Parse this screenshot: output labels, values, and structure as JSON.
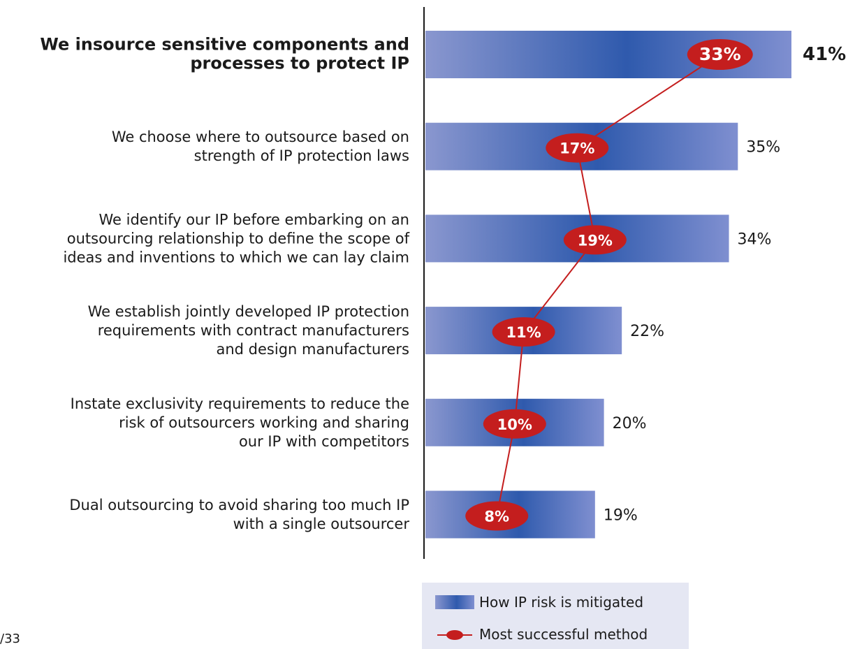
{
  "chart_data": {
    "type": "bar",
    "orientation": "horizontal",
    "categories": [
      [
        "We insource sensitive components and",
        "processes to protect IP"
      ],
      [
        "We choose where to outsource based on",
        "strength of IP protection laws"
      ],
      [
        "We identify our IP before embarking on an",
        "outsourcing relationship to define the scope of",
        "ideas and inventions to which we can lay claim"
      ],
      [
        "We establish  jointly developed IP protection",
        "requirements with contract manufacturers",
        "and design manufacturers"
      ],
      [
        "Instate exclusivity requirements to reduce the",
        "risk of outsourcers working and sharing",
        "our IP with competitors"
      ],
      [
        "Dual outsourcing to avoid sharing too much IP",
        "with a single outsourcer"
      ]
    ],
    "series": [
      {
        "name": "How IP risk is mitigated",
        "type": "bar",
        "values": [
          41,
          35,
          34,
          22,
          20,
          19
        ],
        "labels": [
          "41%",
          "35%",
          "34%",
          "22%",
          "20%",
          "19%"
        ],
        "color": "#3a5db0"
      },
      {
        "name": "Most successful method",
        "type": "line",
        "values": [
          33,
          17,
          19,
          11,
          10,
          8
        ],
        "labels": [
          "33%",
          "17%",
          "19%",
          "11%",
          "10%",
          "8%"
        ],
        "color": "#c41e1e"
      }
    ],
    "xlim": [
      0,
      41
    ],
    "highlight_first": true,
    "legend_position": "bottom-right"
  },
  "footnote": "/33"
}
